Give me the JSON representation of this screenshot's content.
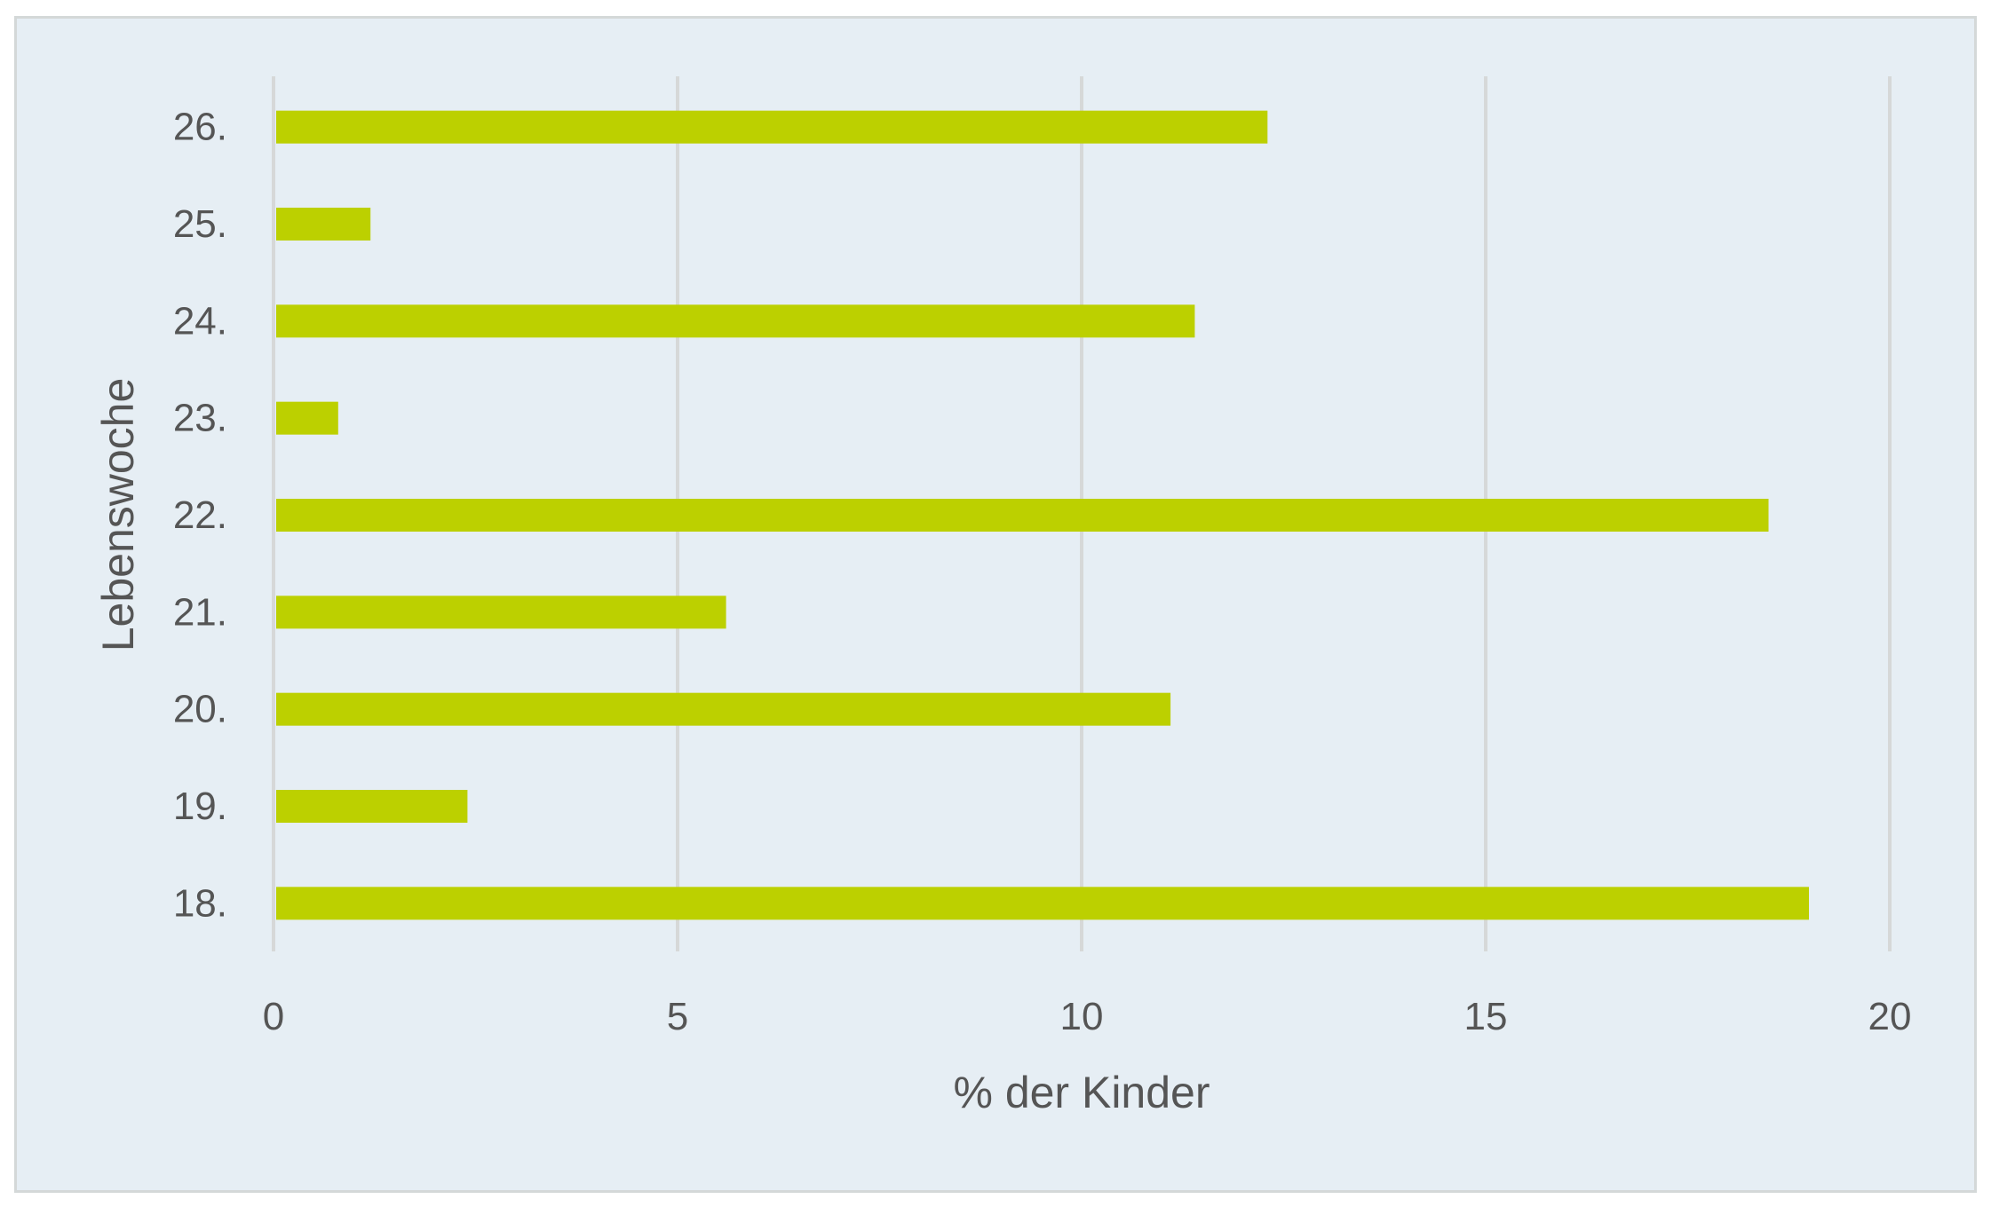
{
  "chart_data": {
    "type": "bar",
    "orientation": "horizontal",
    "categories": [
      "18.",
      "19.",
      "20.",
      "21.",
      "22.",
      "23.",
      "24.",
      "25.",
      "26."
    ],
    "values": [
      19.0,
      2.4,
      11.1,
      5.6,
      18.5,
      0.8,
      11.4,
      1.2,
      12.3
    ],
    "xlabel": "% der Kinder",
    "ylabel": "Lebenswoche",
    "xlim": [
      0,
      20
    ],
    "xticks": [
      "0",
      "5",
      "10",
      "15",
      "20"
    ],
    "grid": "vertical",
    "bar_color": "#bcd000",
    "background": "#e6eef4",
    "legend": "none"
  }
}
